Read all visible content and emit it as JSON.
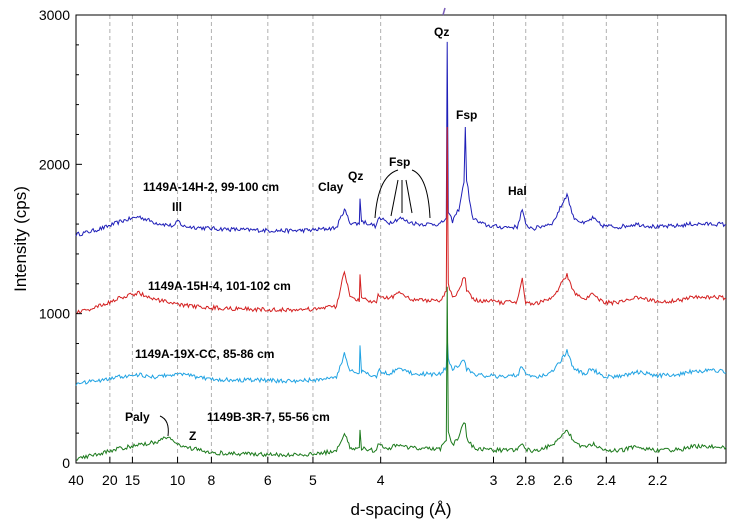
{
  "chart_data": {
    "type": "line",
    "title": "",
    "xlabel": "d-spacing (Å)",
    "ylabel": "Intensity (cps)",
    "x_scale": "reciprocal",
    "xlim": [
      40,
      1.98
    ],
    "ylim": [
      0,
      3000
    ],
    "grid": "vertical dashed",
    "x_ticks": [
      {
        "value": 40,
        "label": "40"
      },
      {
        "value": 20,
        "label": "20"
      },
      {
        "value": 15,
        "label": "15"
      },
      {
        "value": 10,
        "label": "10"
      },
      {
        "value": 8,
        "label": "8"
      },
      {
        "value": 6,
        "label": "6"
      },
      {
        "value": 5,
        "label": "5"
      },
      {
        "value": 4,
        "label": "4"
      },
      {
        "value": 3,
        "label": "3"
      },
      {
        "value": 2.8,
        "label": "2.8"
      },
      {
        "value": 2.6,
        "label": "2.6"
      },
      {
        "value": 2.4,
        "label": "2.4"
      },
      {
        "value": 2.2,
        "label": "2.2"
      }
    ],
    "y_ticks": [
      {
        "value": 0,
        "label": "0"
      },
      {
        "value": 1000,
        "label": "1000"
      },
      {
        "value": 2000,
        "label": "2000"
      },
      {
        "value": 3000,
        "label": "3000"
      }
    ],
    "series": [
      {
        "name": "1149A-14H-2, 99-100 cm",
        "color": "#1f1fb8",
        "points": [
          [
            40,
            1530
          ],
          [
            30,
            1545
          ],
          [
            22,
            1575
          ],
          [
            17,
            1620
          ],
          [
            14,
            1650
          ],
          [
            12,
            1610
          ],
          [
            10.2,
            1585
          ],
          [
            10,
            1625
          ],
          [
            9.6,
            1585
          ],
          [
            8,
            1570
          ],
          [
            6.5,
            1560
          ],
          [
            5.5,
            1555
          ],
          [
            5,
            1560
          ],
          [
            4.6,
            1575
          ],
          [
            4.48,
            1700
          ],
          [
            4.4,
            1610
          ],
          [
            4.27,
            1600
          ],
          [
            4.26,
            1780
          ],
          [
            4.24,
            1620
          ],
          [
            4.05,
            1585
          ],
          [
            4.03,
            1640
          ],
          [
            3.9,
            1610
          ],
          [
            3.78,
            1640
          ],
          [
            3.7,
            1615
          ],
          [
            3.6,
            1600
          ],
          [
            3.4,
            1600
          ],
          [
            3.35,
            1640
          ],
          [
            3.343,
            2820
          ],
          [
            3.334,
            1670
          ],
          [
            3.3,
            1620
          ],
          [
            3.25,
            1700
          ],
          [
            3.21,
            1880
          ],
          [
            3.2,
            2250
          ],
          [
            3.19,
            1900
          ],
          [
            3.15,
            1650
          ],
          [
            3.1,
            1610
          ],
          [
            3.04,
            1590
          ],
          [
            2.95,
            1580
          ],
          [
            2.85,
            1580
          ],
          [
            2.82,
            1700
          ],
          [
            2.8,
            1590
          ],
          [
            2.75,
            1570
          ],
          [
            2.65,
            1610
          ],
          [
            2.58,
            1800
          ],
          [
            2.55,
            1650
          ],
          [
            2.5,
            1600
          ],
          [
            2.46,
            1640
          ],
          [
            2.42,
            1590
          ],
          [
            2.35,
            1580
          ],
          [
            2.28,
            1600
          ],
          [
            2.2,
            1580
          ],
          [
            2.12,
            1590
          ],
          [
            2.09,
            1600
          ],
          [
            2.0,
            1600
          ],
          [
            1.98,
            1595
          ]
        ]
      },
      {
        "name": "1149A-15H-4, 101-102 cm",
        "color": "#d42020",
        "points": [
          [
            40,
            1010
          ],
          [
            30,
            1025
          ],
          [
            22,
            1060
          ],
          [
            17,
            1110
          ],
          [
            14,
            1140
          ],
          [
            12,
            1095
          ],
          [
            10,
            1060
          ],
          [
            8,
            1040
          ],
          [
            6.5,
            1030
          ],
          [
            5.5,
            1025
          ],
          [
            5,
            1030
          ],
          [
            4.6,
            1050
          ],
          [
            4.48,
            1280
          ],
          [
            4.4,
            1120
          ],
          [
            4.27,
            1090
          ],
          [
            4.26,
            1260
          ],
          [
            4.24,
            1100
          ],
          [
            4.05,
            1070
          ],
          [
            4.03,
            1130
          ],
          [
            3.9,
            1100
          ],
          [
            3.78,
            1150
          ],
          [
            3.7,
            1105
          ],
          [
            3.6,
            1090
          ],
          [
            3.4,
            1090
          ],
          [
            3.35,
            1150
          ],
          [
            3.343,
            2250
          ],
          [
            3.334,
            1200
          ],
          [
            3.3,
            1110
          ],
          [
            3.25,
            1150
          ],
          [
            3.21,
            1250
          ],
          [
            3.2,
            1240
          ],
          [
            3.19,
            1160
          ],
          [
            3.15,
            1100
          ],
          [
            3.1,
            1080
          ],
          [
            3.04,
            1085
          ],
          [
            2.95,
            1075
          ],
          [
            2.85,
            1080
          ],
          [
            2.82,
            1230
          ],
          [
            2.8,
            1080
          ],
          [
            2.75,
            1065
          ],
          [
            2.65,
            1110
          ],
          [
            2.58,
            1260
          ],
          [
            2.55,
            1150
          ],
          [
            2.5,
            1090
          ],
          [
            2.46,
            1130
          ],
          [
            2.42,
            1080
          ],
          [
            2.35,
            1070
          ],
          [
            2.28,
            1110
          ],
          [
            2.2,
            1080
          ],
          [
            2.12,
            1090
          ],
          [
            2.09,
            1110
          ],
          [
            2.0,
            1110
          ],
          [
            1.98,
            1100
          ]
        ]
      },
      {
        "name": "1149A-19X-CC, 85-86 cm",
        "color": "#21a3e3",
        "points": [
          [
            40,
            530
          ],
          [
            30,
            540
          ],
          [
            22,
            560
          ],
          [
            17,
            580
          ],
          [
            14,
            590
          ],
          [
            12,
            575
          ],
          [
            10,
            600
          ],
          [
            8,
            560
          ],
          [
            6.5,
            555
          ],
          [
            5.5,
            550
          ],
          [
            5,
            555
          ],
          [
            4.6,
            570
          ],
          [
            4.48,
            730
          ],
          [
            4.4,
            620
          ],
          [
            4.27,
            600
          ],
          [
            4.26,
            780
          ],
          [
            4.24,
            610
          ],
          [
            4.05,
            580
          ],
          [
            4.03,
            620
          ],
          [
            3.9,
            600
          ],
          [
            3.78,
            630
          ],
          [
            3.7,
            605
          ],
          [
            3.6,
            595
          ],
          [
            3.4,
            595
          ],
          [
            3.35,
            640
          ],
          [
            3.343,
            850
          ],
          [
            3.334,
            700
          ],
          [
            3.3,
            620
          ],
          [
            3.25,
            660
          ],
          [
            3.21,
            690
          ],
          [
            3.2,
            670
          ],
          [
            3.19,
            630
          ],
          [
            3.15,
            600
          ],
          [
            3.1,
            590
          ],
          [
            3.04,
            585
          ],
          [
            2.95,
            580
          ],
          [
            2.85,
            585
          ],
          [
            2.82,
            650
          ],
          [
            2.8,
            590
          ],
          [
            2.75,
            575
          ],
          [
            2.65,
            610
          ],
          [
            2.58,
            750
          ],
          [
            2.55,
            640
          ],
          [
            2.5,
            595
          ],
          [
            2.46,
            630
          ],
          [
            2.42,
            585
          ],
          [
            2.35,
            575
          ],
          [
            2.28,
            610
          ],
          [
            2.2,
            585
          ],
          [
            2.12,
            595
          ],
          [
            2.09,
            610
          ],
          [
            2.0,
            620
          ],
          [
            1.98,
            605
          ]
        ]
      },
      {
        "name": "1149B-3R-7, 55-56 cm",
        "color": "#1c7a1c",
        "points": [
          [
            40,
            30
          ],
          [
            30,
            45
          ],
          [
            22,
            70
          ],
          [
            17,
            100
          ],
          [
            14,
            120
          ],
          [
            12,
            140
          ],
          [
            10.6,
            175
          ],
          [
            10.2,
            140
          ],
          [
            10,
            130
          ],
          [
            9.6,
            110
          ],
          [
            8,
            70
          ],
          [
            6.5,
            60
          ],
          [
            5.5,
            55
          ],
          [
            5,
            60
          ],
          [
            4.6,
            80
          ],
          [
            4.48,
            200
          ],
          [
            4.4,
            100
          ],
          [
            4.27,
            90
          ],
          [
            4.26,
            210
          ],
          [
            4.24,
            100
          ],
          [
            4.05,
            80
          ],
          [
            4.03,
            120
          ],
          [
            3.9,
            100
          ],
          [
            3.78,
            130
          ],
          [
            3.7,
            105
          ],
          [
            3.6,
            95
          ],
          [
            3.4,
            95
          ],
          [
            3.35,
            150
          ],
          [
            3.343,
            1180
          ],
          [
            3.334,
            200
          ],
          [
            3.3,
            120
          ],
          [
            3.25,
            170
          ],
          [
            3.21,
            280
          ],
          [
            3.2,
            250
          ],
          [
            3.19,
            170
          ],
          [
            3.15,
            110
          ],
          [
            3.1,
            95
          ],
          [
            3.04,
            90
          ],
          [
            2.95,
            85
          ],
          [
            2.85,
            85
          ],
          [
            2.82,
            140
          ],
          [
            2.8,
            90
          ],
          [
            2.75,
            80
          ],
          [
            2.65,
            120
          ],
          [
            2.58,
            230
          ],
          [
            2.55,
            150
          ],
          [
            2.5,
            100
          ],
          [
            2.46,
            130
          ],
          [
            2.42,
            90
          ],
          [
            2.35,
            80
          ],
          [
            2.28,
            110
          ],
          [
            2.2,
            85
          ],
          [
            2.12,
            90
          ],
          [
            2.09,
            110
          ],
          [
            2.0,
            110
          ],
          [
            1.98,
            105
          ]
        ]
      }
    ],
    "annotations": [
      {
        "text": "1149A-14H-2, 99-100 cm"
      },
      {
        "text": "Ill"
      },
      {
        "text": "Clay"
      },
      {
        "text": "Qz"
      },
      {
        "text": "Fsp"
      },
      {
        "text": "Qz"
      },
      {
        "text": "Fsp"
      },
      {
        "text": "Hal"
      },
      {
        "text": "1149A-15H-4, 101-102 cm"
      },
      {
        "text": "1149A-19X-CC, 85-86 cm"
      },
      {
        "text": "Paly"
      },
      {
        "text": "1149B-3R-7, 55-56 cm"
      },
      {
        "text": "Z"
      }
    ]
  }
}
